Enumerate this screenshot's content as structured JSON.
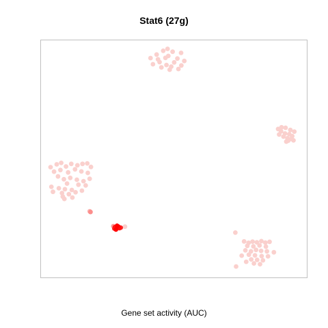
{
  "chart_data": {
    "type": "scatter",
    "title": "Stat6 (27g)",
    "xlabel": "Gene set activity (AUC)",
    "ylabel": "",
    "xlim": [
      0,
      100
    ],
    "ylim": [
      0,
      100
    ],
    "axes_ticks": false,
    "grid": false,
    "colors": {
      "low": "#fadbd8",
      "high": "#ff0000",
      "frame": "#c0c0c0"
    },
    "series": [
      {
        "values_scale": "activity 0-1",
        "points": [
          {
            "x": 41.2,
            "y": 92.5,
            "v": 0.05
          },
          {
            "x": 43.5,
            "y": 94.0,
            "v": 0.05
          },
          {
            "x": 46.0,
            "y": 95.6,
            "v": 0.05
          },
          {
            "x": 47.9,
            "y": 93.4,
            "v": 0.05
          },
          {
            "x": 49.5,
            "y": 95.2,
            "v": 0.05
          },
          {
            "x": 51.3,
            "y": 92.3,
            "v": 0.05
          },
          {
            "x": 52.7,
            "y": 94.7,
            "v": 0.05
          },
          {
            "x": 44.6,
            "y": 90.8,
            "v": 0.05
          },
          {
            "x": 47.2,
            "y": 89.6,
            "v": 0.05
          },
          {
            "x": 50.1,
            "y": 90.7,
            "v": 0.05
          },
          {
            "x": 52.8,
            "y": 89.4,
            "v": 0.05
          },
          {
            "x": 45.3,
            "y": 88.6,
            "v": 0.05
          },
          {
            "x": 48.4,
            "y": 87.6,
            "v": 0.05
          },
          {
            "x": 42.1,
            "y": 89.9,
            "v": 0.05
          },
          {
            "x": 53.9,
            "y": 91.3,
            "v": 0.05
          },
          {
            "x": 46.8,
            "y": 92.6,
            "v": 0.05
          },
          {
            "x": 49.0,
            "y": 88.9,
            "v": 0.05
          },
          {
            "x": 51.7,
            "y": 87.9,
            "v": 0.05
          },
          {
            "x": 44.0,
            "y": 92.0,
            "v": 0.05
          },
          {
            "x": 47.6,
            "y": 96.4,
            "v": 0.05
          },
          {
            "x": 89.2,
            "y": 62.6,
            "v": 0.05
          },
          {
            "x": 90.5,
            "y": 63.3,
            "v": 0.05
          },
          {
            "x": 92.0,
            "y": 63.1,
            "v": 0.05
          },
          {
            "x": 93.8,
            "y": 62.2,
            "v": 0.05
          },
          {
            "x": 95.3,
            "y": 61.5,
            "v": 0.05
          },
          {
            "x": 90.3,
            "y": 61.6,
            "v": 0.05
          },
          {
            "x": 91.8,
            "y": 60.7,
            "v": 0.05
          },
          {
            "x": 93.4,
            "y": 60.4,
            "v": 0.05
          },
          {
            "x": 94.5,
            "y": 59.6,
            "v": 0.05
          },
          {
            "x": 91.2,
            "y": 59.4,
            "v": 0.05
          },
          {
            "x": 92.7,
            "y": 58.7,
            "v": 0.05
          },
          {
            "x": 94.0,
            "y": 58.4,
            "v": 0.05
          },
          {
            "x": 93.0,
            "y": 57.7,
            "v": 0.05
          },
          {
            "x": 95.0,
            "y": 57.8,
            "v": 0.05
          },
          {
            "x": 92.3,
            "y": 57.3,
            "v": 0.05
          },
          {
            "x": 89.6,
            "y": 60.3,
            "v": 0.05
          },
          {
            "x": 3.6,
            "y": 46.5,
            "v": 0.05
          },
          {
            "x": 5.9,
            "y": 47.7,
            "v": 0.05
          },
          {
            "x": 7.6,
            "y": 48.3,
            "v": 0.05
          },
          {
            "x": 9.4,
            "y": 46.8,
            "v": 0.05
          },
          {
            "x": 11.4,
            "y": 47.9,
            "v": 0.05
          },
          {
            "x": 13.7,
            "y": 47.3,
            "v": 0.05
          },
          {
            "x": 15.6,
            "y": 47.9,
            "v": 0.05
          },
          {
            "x": 17.4,
            "y": 48.1,
            "v": 0.05
          },
          {
            "x": 18.8,
            "y": 46.6,
            "v": 0.05
          },
          {
            "x": 4.9,
            "y": 44.6,
            "v": 0.05
          },
          {
            "x": 7.3,
            "y": 45.3,
            "v": 0.05
          },
          {
            "x": 10.2,
            "y": 44.3,
            "v": 0.05
          },
          {
            "x": 12.8,
            "y": 45.6,
            "v": 0.05
          },
          {
            "x": 15.2,
            "y": 44.7,
            "v": 0.05
          },
          {
            "x": 17.6,
            "y": 44.1,
            "v": 0.05
          },
          {
            "x": 6.4,
            "y": 42.6,
            "v": 0.05
          },
          {
            "x": 8.6,
            "y": 41.4,
            "v": 0.05
          },
          {
            "x": 11.0,
            "y": 42.0,
            "v": 0.05
          },
          {
            "x": 13.5,
            "y": 41.2,
            "v": 0.05
          },
          {
            "x": 16.0,
            "y": 40.6,
            "v": 0.05
          },
          {
            "x": 18.3,
            "y": 41.6,
            "v": 0.05
          },
          {
            "x": 9.8,
            "y": 39.6,
            "v": 0.05
          },
          {
            "x": 14.1,
            "y": 39.1,
            "v": 0.05
          },
          {
            "x": 16.8,
            "y": 38.8,
            "v": 0.05
          },
          {
            "x": 3.9,
            "y": 38.2,
            "v": 0.05
          },
          {
            "x": 6.7,
            "y": 37.6,
            "v": 0.05
          },
          {
            "x": 9.0,
            "y": 37.2,
            "v": 0.05
          },
          {
            "x": 11.6,
            "y": 36.9,
            "v": 0.05
          },
          {
            "x": 4.5,
            "y": 36.1,
            "v": 0.05
          },
          {
            "x": 7.9,
            "y": 35.6,
            "v": 0.05
          },
          {
            "x": 10.5,
            "y": 35.1,
            "v": 0.05
          },
          {
            "x": 13.0,
            "y": 35.9,
            "v": 0.05
          },
          {
            "x": 15.4,
            "y": 36.6,
            "v": 0.05
          },
          {
            "x": 8.2,
            "y": 34.1,
            "v": 0.05
          },
          {
            "x": 11.8,
            "y": 33.7,
            "v": 0.05
          },
          {
            "x": 8.8,
            "y": 33.1,
            "v": 0.05
          },
          {
            "x": 18.3,
            "y": 27.9,
            "v": 0.15
          },
          {
            "x": 18.6,
            "y": 27.6,
            "v": 0.35
          },
          {
            "x": 27.8,
            "y": 21.2,
            "v": 0.9
          },
          {
            "x": 28.6,
            "y": 21.8,
            "v": 1.0
          },
          {
            "x": 29.1,
            "y": 21.4,
            "v": 0.95
          },
          {
            "x": 27.6,
            "y": 20.6,
            "v": 0.85
          },
          {
            "x": 28.2,
            "y": 20.2,
            "v": 1.0
          },
          {
            "x": 29.5,
            "y": 20.8,
            "v": 0.9
          },
          {
            "x": 30.0,
            "y": 21.0,
            "v": 0.8
          },
          {
            "x": 27.2,
            "y": 21.6,
            "v": 0.3
          },
          {
            "x": 31.6,
            "y": 21.4,
            "v": 0.05
          },
          {
            "x": 73.1,
            "y": 18.9,
            "v": 0.05
          },
          {
            "x": 76.4,
            "y": 15.2,
            "v": 0.05
          },
          {
            "x": 78.1,
            "y": 14.6,
            "v": 0.05
          },
          {
            "x": 79.6,
            "y": 15.1,
            "v": 0.05
          },
          {
            "x": 81.2,
            "y": 14.8,
            "v": 0.05
          },
          {
            "x": 82.9,
            "y": 15.3,
            "v": 0.05
          },
          {
            "x": 84.4,
            "y": 14.7,
            "v": 0.05
          },
          {
            "x": 86.0,
            "y": 15.0,
            "v": 0.05
          },
          {
            "x": 77.6,
            "y": 13.3,
            "v": 0.05
          },
          {
            "x": 79.9,
            "y": 13.1,
            "v": 0.05
          },
          {
            "x": 82.2,
            "y": 13.5,
            "v": 0.05
          },
          {
            "x": 84.6,
            "y": 13.0,
            "v": 0.05
          },
          {
            "x": 76.9,
            "y": 11.4,
            "v": 0.05
          },
          {
            "x": 79.0,
            "y": 11.0,
            "v": 0.05
          },
          {
            "x": 80.9,
            "y": 11.6,
            "v": 0.05
          },
          {
            "x": 82.8,
            "y": 11.2,
            "v": 0.05
          },
          {
            "x": 85.0,
            "y": 11.0,
            "v": 0.05
          },
          {
            "x": 87.6,
            "y": 10.6,
            "v": 0.05
          },
          {
            "x": 75.5,
            "y": 9.2,
            "v": 0.05
          },
          {
            "x": 78.2,
            "y": 9.6,
            "v": 0.05
          },
          {
            "x": 80.5,
            "y": 9.3,
            "v": 0.05
          },
          {
            "x": 83.0,
            "y": 9.0,
            "v": 0.05
          },
          {
            "x": 85.4,
            "y": 8.9,
            "v": 0.05
          },
          {
            "x": 79.1,
            "y": 7.6,
            "v": 0.05
          },
          {
            "x": 81.3,
            "y": 7.4,
            "v": 0.05
          },
          {
            "x": 83.5,
            "y": 7.2,
            "v": 0.05
          },
          {
            "x": 80.1,
            "y": 5.9,
            "v": 0.05
          },
          {
            "x": 82.4,
            "y": 5.6,
            "v": 0.05
          },
          {
            "x": 73.4,
            "y": 4.6,
            "v": 0.05
          },
          {
            "x": 77.2,
            "y": 6.6,
            "v": 0.05
          }
        ]
      }
    ]
  }
}
